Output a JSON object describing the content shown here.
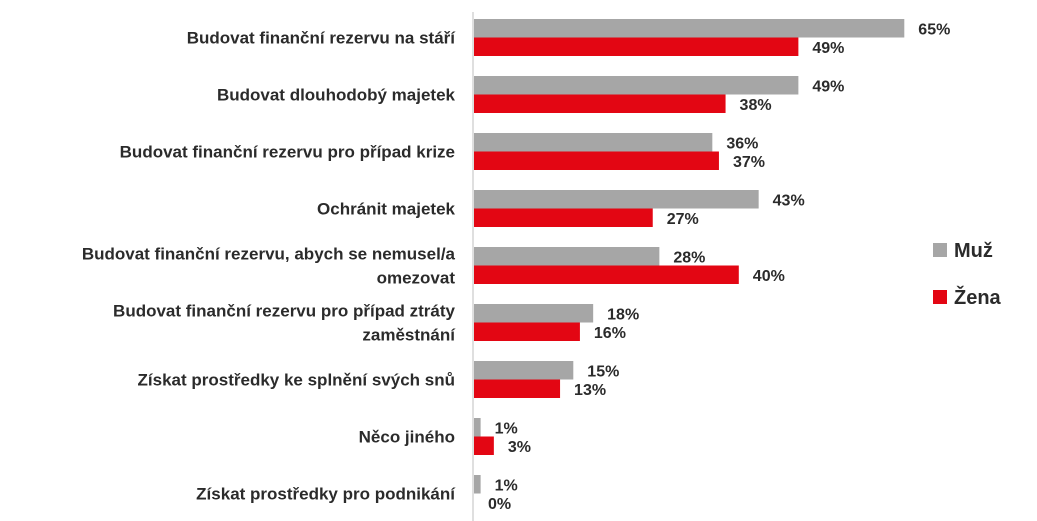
{
  "chart_data": {
    "type": "bar",
    "orientation": "horizontal",
    "categories": [
      [
        "Budovat finanční rezervu na stáří"
      ],
      [
        "Budovat dlouhodobý majetek"
      ],
      [
        "Budovat finanční rezervu pro případ krize"
      ],
      [
        "Ochránit majetek"
      ],
      [
        "Budovat finanční rezervu, abych se nemusel/a",
        "omezovat"
      ],
      [
        "Budovat finanční rezervu pro případ ztráty",
        "zaměstnání"
      ],
      [
        "Získat prostředky ke splnění svých snů"
      ],
      [
        "Něco jiného"
      ],
      [
        "Získat prostředky pro podnikání"
      ]
    ],
    "series": [
      {
        "name": "Muž",
        "color": "#a6a6a6",
        "values": [
          65,
          49,
          36,
          43,
          28,
          18,
          15,
          1,
          1
        ],
        "labels": [
          "65%",
          "49%",
          "36%",
          "43%",
          "28%",
          "18%",
          "15%",
          "1%",
          "1%"
        ]
      },
      {
        "name": "Žena",
        "color": "#e30613",
        "values": [
          49,
          38,
          37,
          27,
          40,
          16,
          13,
          3,
          0
        ],
        "labels": [
          "49%",
          "38%",
          "37%",
          "27%",
          "40%",
          "16%",
          "13%",
          "3%",
          "0%"
        ]
      }
    ],
    "xlim": [
      0,
      70
    ],
    "grid": false,
    "legend_position": "right"
  }
}
